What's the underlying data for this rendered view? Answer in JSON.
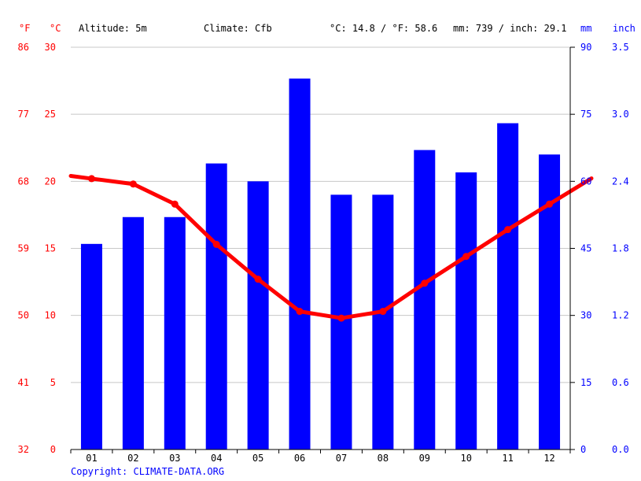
{
  "header": {
    "unit_f": "°F",
    "unit_c": "°C",
    "altitude": "Altitude: 5m",
    "climate": "Climate: Cfb",
    "temp_avg": "°C: 14.8 / °F: 58.6",
    "precip_total": "mm: 739 / inch: 29.1",
    "unit_mm": "mm",
    "unit_inch": "inch"
  },
  "copyright": "Copyright: CLIMATE-DATA.ORG",
  "colors": {
    "temperature": "#ff0000",
    "precipitation": "#0000ff",
    "grid": "#c8c8c8",
    "axis": "#000000"
  },
  "chart_data": {
    "type": "bar",
    "categories": [
      "01",
      "02",
      "03",
      "04",
      "05",
      "06",
      "07",
      "08",
      "09",
      "10",
      "11",
      "12"
    ],
    "series": [
      {
        "type": "bar",
        "axis": "right",
        "unit": "mm",
        "values": [
          46,
          52,
          52,
          64,
          60,
          83,
          57,
          57,
          67,
          62,
          73,
          66
        ]
      },
      {
        "type": "line",
        "axis": "left",
        "unit": "°C",
        "values": [
          20.2,
          19.8,
          18.3,
          15.3,
          12.7,
          10.3,
          9.8,
          10.3,
          12.4,
          14.4,
          16.4,
          18.3
        ]
      }
    ],
    "y_left_c": {
      "range": [
        0,
        30
      ],
      "ticks": [
        "0",
        "5",
        "10",
        "15",
        "20",
        "25",
        "30"
      ]
    },
    "y_left_f": {
      "ticks": [
        "32",
        "41",
        "50",
        "59",
        "68",
        "77",
        "86"
      ]
    },
    "y_right_mm": {
      "range": [
        0,
        90
      ],
      "ticks": [
        "0",
        "15",
        "30",
        "45",
        "60",
        "75",
        "90"
      ]
    },
    "y_right_inch": {
      "ticks": [
        "0.0",
        "0.6",
        "1.2",
        "1.8",
        "2.4",
        "3.0",
        "3.5"
      ]
    },
    "grid": true
  }
}
